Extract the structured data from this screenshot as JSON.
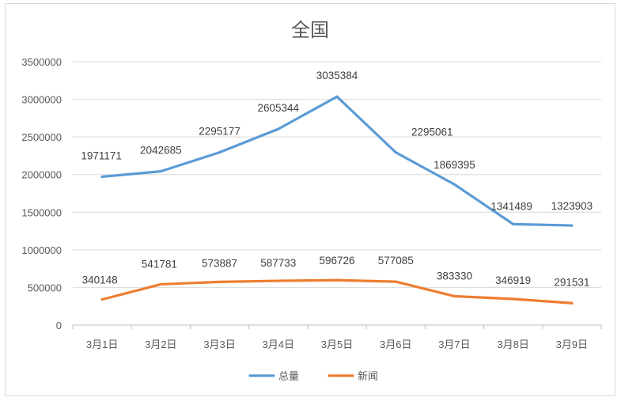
{
  "chart_data": {
    "type": "line",
    "title": "全国",
    "categories": [
      "3月1日",
      "3月2日",
      "3月3日",
      "3月4日",
      "3月5日",
      "3月6日",
      "3月7日",
      "3月8日",
      "3月9日"
    ],
    "ylim": [
      0,
      3500000
    ],
    "yticks": [
      "0",
      "500000",
      "1000000",
      "1500000",
      "2000000",
      "2500000",
      "3000000",
      "3500000"
    ],
    "grid": true,
    "legend_position": "bottom",
    "series": [
      {
        "name": "总量",
        "color": "#5b9bd5",
        "values": [
          1971171,
          2042685,
          2295177,
          2605344,
          3035384,
          2295061,
          1869395,
          1341489,
          1323903
        ],
        "labels": [
          "1971171",
          "2042685",
          "2295177",
          "2605344",
          "3035384",
          "2295061",
          "1869395",
          "1341489",
          "1323903"
        ]
      },
      {
        "name": "新闻",
        "color": "#ed7d31",
        "values": [
          340148,
          541781,
          573887,
          587733,
          596726,
          577085,
          383330,
          346919,
          291531
        ],
        "labels": [
          "340148",
          "541781",
          "573887",
          "587733",
          "596726",
          "577085",
          "383330",
          "346919",
          "291531"
        ]
      }
    ]
  }
}
